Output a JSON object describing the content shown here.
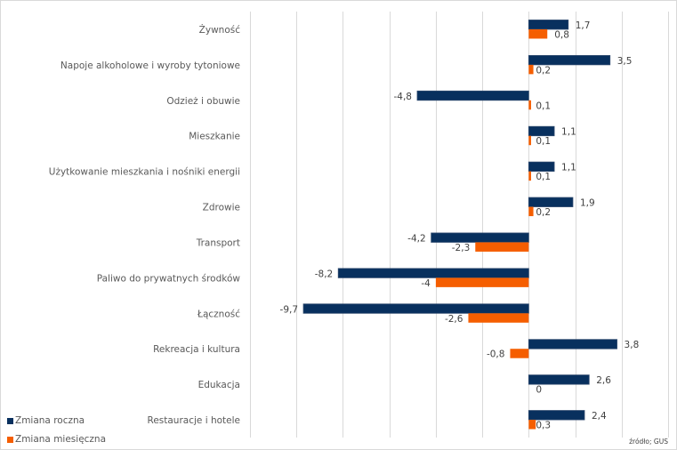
{
  "chart_data": {
    "type": "bar",
    "orientation": "horizontal",
    "title": "",
    "xlabel": "",
    "ylabel": "",
    "xlim": [
      -12,
      6
    ],
    "grid_step": 2,
    "grid": true,
    "categories": [
      "Żywność",
      "Napoje alkoholowe i wyroby tytoniowe",
      "Odzież i obuwie",
      "Mieszkanie",
      "Użytkowanie mieszkania i nośniki energii",
      "Zdrowie",
      "Transport",
      "Paliwo do prywatnych środków",
      "Łączność",
      "Rekreacja i kultura",
      "Edukacja",
      "Restauracje i hotele"
    ],
    "series": [
      {
        "name": "Zmiana roczna",
        "color": "#08305E",
        "values": [
          1.7,
          3.5,
          -4.8,
          1.1,
          1.1,
          1.9,
          -4.2,
          -8.2,
          -9.7,
          3.8,
          2.6,
          2.4
        ],
        "labels": [
          "1,7",
          "3,5",
          "-4,8",
          "1,1",
          "1,1",
          "1,9",
          "-4,2",
          "-8,2",
          "-9,7",
          "3,8",
          "2,6",
          "2,4"
        ]
      },
      {
        "name": "Zmiana miesięczna",
        "color": "#F55E00",
        "values": [
          0.8,
          0.2,
          0.1,
          0.1,
          0.1,
          0.2,
          -2.3,
          -4,
          -2.6,
          -0.8,
          0,
          0.3
        ],
        "labels": [
          "0,8",
          "0,2",
          "0,1",
          "0,1",
          "0,1",
          "0,2",
          "-2,3",
          "-4",
          "-2,6",
          "-0,8",
          "0",
          "0,3"
        ]
      }
    ],
    "legend": {
      "placement": "bottom-left",
      "entries": [
        "Zmiana roczna",
        "Zmiana miesięczna"
      ]
    },
    "source_note": "źródło; GUS"
  }
}
